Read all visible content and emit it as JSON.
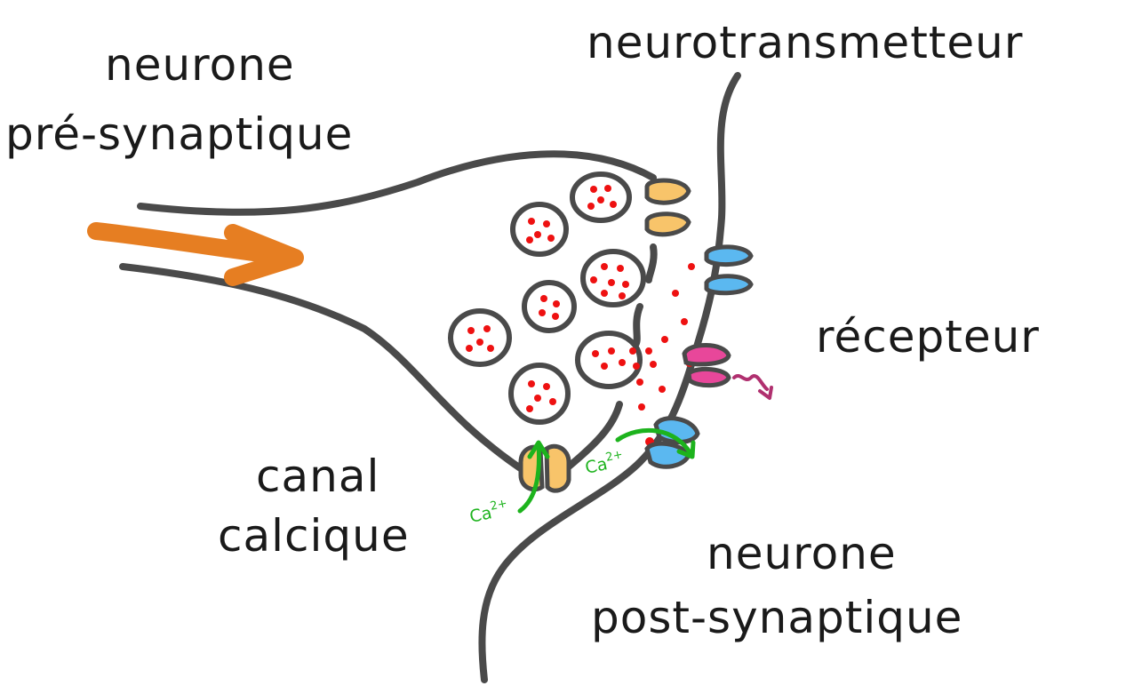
{
  "labels": {
    "presynaptic_line1": "neurone",
    "presynaptic_line2": "pré-synaptique",
    "neurotransmitter": "neurotransmetteur",
    "receptor": "récepteur",
    "calcium_channel_line1": "canal",
    "calcium_channel_line2": "calcique",
    "postsynaptic_line1": "neurone",
    "postsynaptic_line2": "post-synaptique",
    "ion_base": "Ca",
    "ion_charge": "2+"
  },
  "colors": {
    "membrane": "#4a4a4a",
    "signal_arrow": "#e67e22",
    "vesicle_dot": "#ee1111",
    "calcium_channel": "#f8c46a",
    "receptor_blue": "#5bb8f0",
    "receptor_pink": "#e8479a",
    "calcium_flow": "#1db31d",
    "response_wave": "#b0306f"
  }
}
